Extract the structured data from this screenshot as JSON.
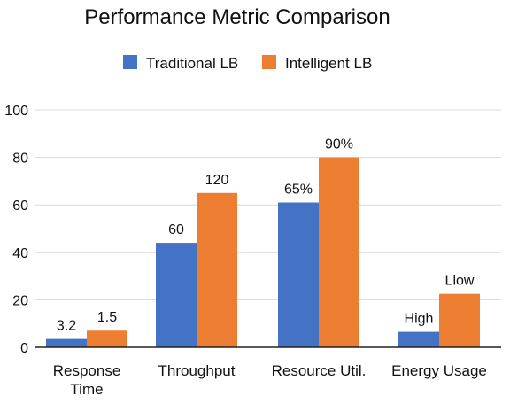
{
  "chart_data": {
    "type": "bar",
    "title": "Performance Metric Comparison",
    "xlabel": "",
    "ylabel": "",
    "ylim": [
      0,
      100
    ],
    "yticks": [
      0,
      20,
      40,
      60,
      80,
      100
    ],
    "grid": true,
    "legend_position": "top-center",
    "categories": [
      [
        "Response",
        "Time"
      ],
      [
        "Throughput"
      ],
      [
        "Resource Util."
      ],
      [
        "Energy Usage"
      ]
    ],
    "series": [
      {
        "name": "Traditional LB",
        "color": "#4472c4",
        "values": [
          3.5,
          44,
          61,
          6.5
        ],
        "labels": [
          "3.2",
          "60",
          "65%",
          "High"
        ]
      },
      {
        "name": "Intelligent LB",
        "color": "#ed7d31",
        "values": [
          7,
          65,
          80,
          22.5
        ],
        "labels": [
          "1.5",
          "120",
          "90%",
          "Llow"
        ]
      }
    ]
  }
}
